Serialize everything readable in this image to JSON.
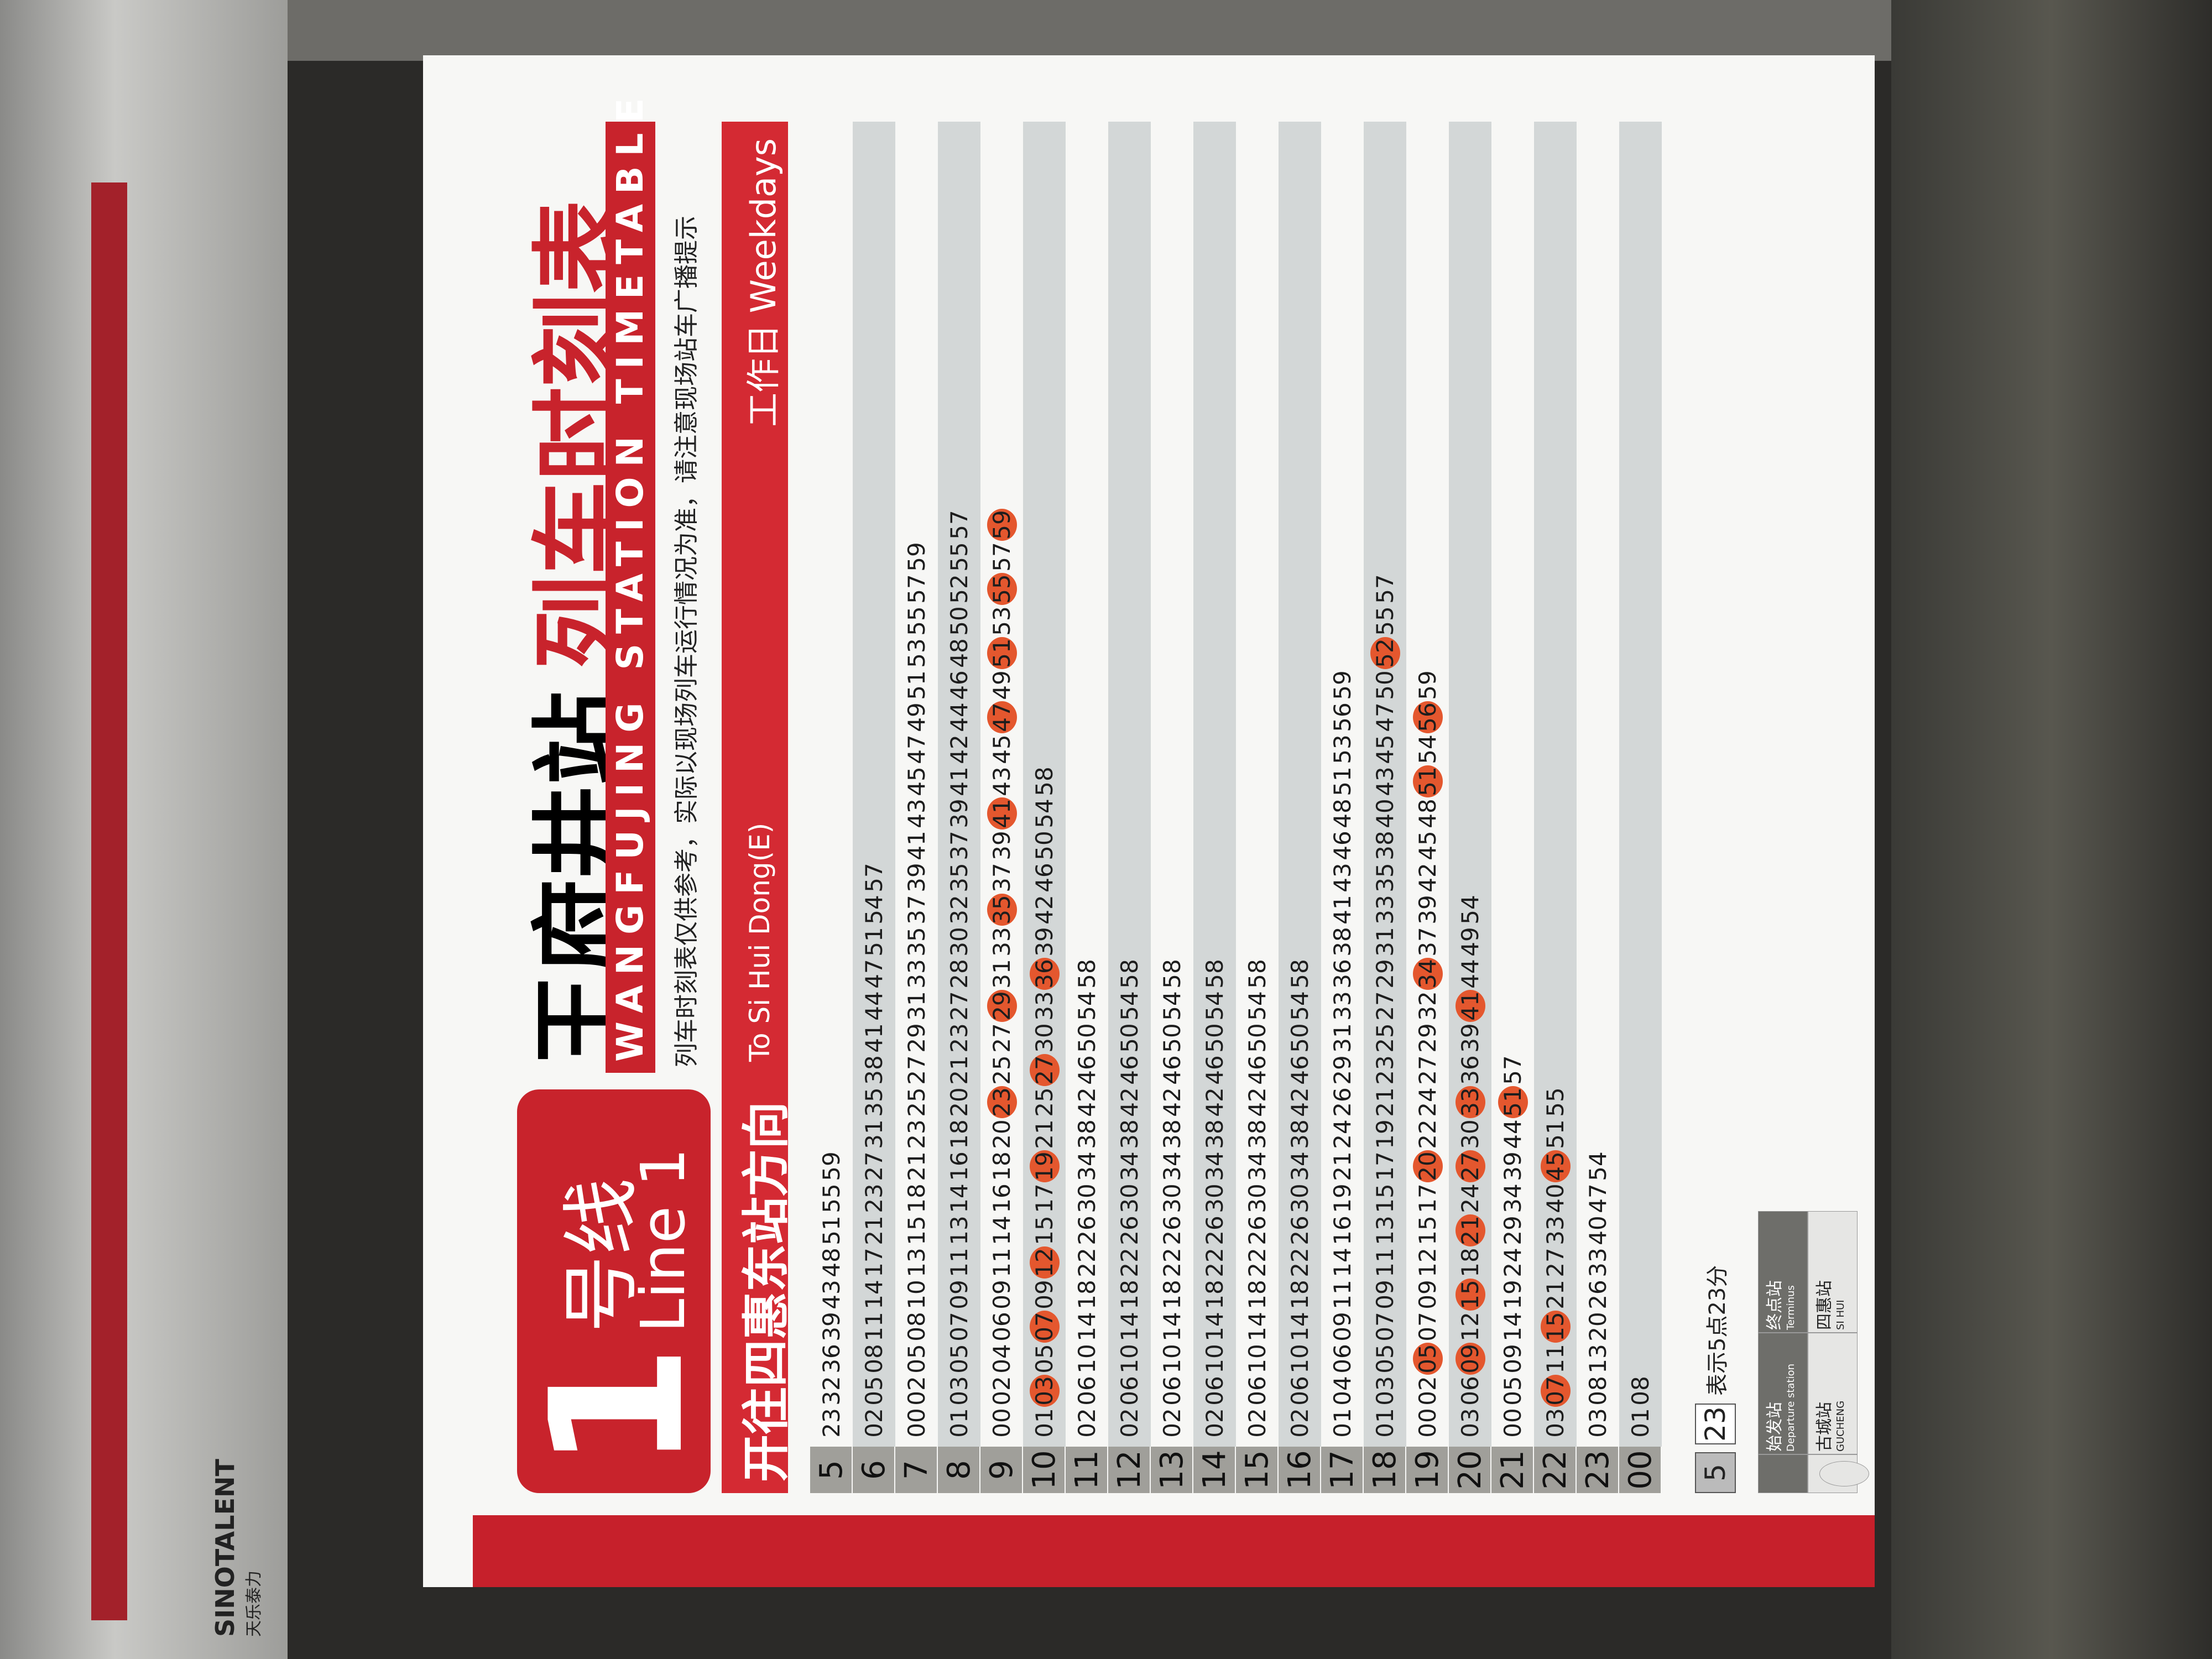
{
  "frame": {
    "brand": "SINOTALENT",
    "brand_cn": "天乐泰力"
  },
  "header": {
    "line_number": "1",
    "line_cn": "号线",
    "line_en": "Line 1",
    "station_cn": "王府井站",
    "title_cn": "列车时刻表",
    "title_en": "WANGFUJING STATION TIMETABLE",
    "notice": "列车时刻表仅供参考，实际以现场列车运行情况为准，请注意现场站车广播提示",
    "direction_cn": "开往四惠东站方向",
    "direction_en": "To Si Hui Dong(E)",
    "day_cn": "工作日",
    "day_en": "Weekdays"
  },
  "table": {
    "rows": [
      {
        "hour": "5",
        "minutes": [
          "23",
          "32",
          "36",
          "39",
          "43",
          "48",
          "51",
          "55",
          "59"
        ]
      },
      {
        "hour": "6",
        "minutes": [
          "02",
          "05",
          "08",
          "11",
          "14",
          "17",
          "21",
          "23",
          "27",
          "31",
          "35",
          "38",
          "41",
          "44",
          "47",
          "51",
          "54",
          "57"
        ]
      },
      {
        "hour": "7",
        "minutes": [
          "00",
          "02",
          "05",
          "08",
          "10",
          "13",
          "15",
          "18",
          "21",
          "23",
          "25",
          "27",
          "29",
          "31",
          "33",
          "35",
          "37",
          "39",
          "41",
          "43",
          "45",
          "47",
          "49",
          "51",
          "53",
          "55",
          "57",
          "59"
        ]
      },
      {
        "hour": "8",
        "minutes": [
          "01",
          "03",
          "05",
          "07",
          "09",
          "11",
          "13",
          "14",
          "16",
          "18",
          "20",
          "21",
          "23",
          "27",
          "28",
          "30",
          "32",
          "35",
          "37",
          "39",
          "41",
          "42",
          "44",
          "46",
          "48",
          "50",
          "52",
          "55",
          "57"
        ]
      },
      {
        "hour": "9",
        "minutes": [
          "00",
          "02",
          "04",
          "06",
          "09",
          "11",
          "14",
          "16",
          "18",
          "20",
          {
            "minute": "23",
            "marked": true
          },
          "25",
          "27",
          {
            "minute": "29",
            "marked": true
          },
          "31",
          "33",
          {
            "minute": "35",
            "marked": true
          },
          "37",
          "39",
          {
            "minute": "41",
            "marked": true
          },
          "43",
          "45",
          {
            "minute": "47",
            "marked": true
          },
          "49",
          {
            "minute": "51",
            "marked": true
          },
          "53",
          {
            "minute": "55",
            "marked": true
          },
          "57",
          {
            "minute": "59",
            "marked": true
          }
        ]
      },
      {
        "hour": "10",
        "minutes": [
          "01",
          {
            "minute": "03",
            "marked": true
          },
          "05",
          {
            "minute": "07",
            "marked": true
          },
          "09",
          {
            "minute": "12",
            "marked": true
          },
          "15",
          "17",
          {
            "minute": "19",
            "marked": true
          },
          "21",
          "25",
          {
            "minute": "27",
            "marked": true
          },
          "30",
          "33",
          {
            "minute": "36",
            "marked": true
          },
          "39",
          "42",
          "46",
          "50",
          "54",
          "58"
        ]
      },
      {
        "hour": "11",
        "minutes": [
          "02",
          "06",
          "10",
          "14",
          "18",
          "22",
          "26",
          "30",
          "34",
          "38",
          "42",
          "46",
          "50",
          "54",
          "58"
        ]
      },
      {
        "hour": "12",
        "minutes": [
          "02",
          "06",
          "10",
          "14",
          "18",
          "22",
          "26",
          "30",
          "34",
          "38",
          "42",
          "46",
          "50",
          "54",
          "58"
        ]
      },
      {
        "hour": "13",
        "minutes": [
          "02",
          "06",
          "10",
          "14",
          "18",
          "22",
          "26",
          "30",
          "34",
          "38",
          "42",
          "46",
          "50",
          "54",
          "58"
        ]
      },
      {
        "hour": "14",
        "minutes": [
          "02",
          "06",
          "10",
          "14",
          "18",
          "22",
          "26",
          "30",
          "34",
          "38",
          "42",
          "46",
          "50",
          "54",
          "58"
        ]
      },
      {
        "hour": "15",
        "minutes": [
          "02",
          "06",
          "10",
          "14",
          "18",
          "22",
          "26",
          "30",
          "34",
          "38",
          "42",
          "46",
          "50",
          "54",
          "58"
        ]
      },
      {
        "hour": "16",
        "minutes": [
          "02",
          "06",
          "10",
          "14",
          "18",
          "22",
          "26",
          "30",
          "34",
          "38",
          "42",
          "46",
          "50",
          "54",
          "58"
        ]
      },
      {
        "hour": "17",
        "minutes": [
          "01",
          "04",
          "06",
          "09",
          "11",
          "14",
          "16",
          "19",
          "21",
          "24",
          "26",
          "29",
          "31",
          "33",
          "36",
          "38",
          "41",
          "43",
          "46",
          "48",
          "51",
          "53",
          "56",
          "59"
        ]
      },
      {
        "hour": "18",
        "minutes": [
          "01",
          "03",
          "05",
          "07",
          "09",
          "11",
          "13",
          "15",
          "17",
          "19",
          "21",
          "23",
          "25",
          "27",
          "29",
          "31",
          "33",
          "35",
          "38",
          "40",
          "43",
          "45",
          "47",
          "50",
          {
            "minute": "52",
            "marked": true
          },
          "55",
          "57"
        ]
      },
      {
        "hour": "19",
        "minutes": [
          "00",
          "02",
          {
            "minute": "05",
            "marked": true
          },
          "07",
          "09",
          "12",
          "15",
          "17",
          {
            "minute": "20",
            "marked": true
          },
          "22",
          "24",
          "27",
          "29",
          "32",
          {
            "minute": "34",
            "marked": true
          },
          "37",
          "39",
          "42",
          "45",
          "48",
          {
            "minute": "51",
            "marked": true
          },
          "54",
          {
            "minute": "56",
            "marked": true
          },
          "59"
        ]
      },
      {
        "hour": "20",
        "minutes": [
          "03",
          "06",
          {
            "minute": "09",
            "marked": true
          },
          "12",
          {
            "minute": "15",
            "marked": true
          },
          "18",
          {
            "minute": "21",
            "marked": true
          },
          "24",
          {
            "minute": "27",
            "marked": true
          },
          "30",
          {
            "minute": "33",
            "marked": true
          },
          "36",
          "39",
          {
            "minute": "41",
            "marked": true
          },
          "44",
          "49",
          "54"
        ]
      },
      {
        "hour": "21",
        "minutes": [
          "00",
          "05",
          "09",
          "14",
          "19",
          "24",
          "29",
          "34",
          "39",
          "44",
          {
            "minute": "51",
            "marked": true
          },
          "57"
        ]
      },
      {
        "hour": "22",
        "minutes": [
          "03",
          {
            "minute": "07",
            "marked": true
          },
          "11",
          {
            "minute": "15",
            "marked": true
          },
          "21",
          "27",
          "33",
          "40",
          {
            "minute": "45",
            "marked": true
          },
          "51",
          "55"
        ]
      },
      {
        "hour": "23",
        "minutes": [
          "03",
          "08",
          "13",
          "20",
          "26",
          "33",
          "40",
          "47",
          "54"
        ]
      },
      {
        "hour": "00",
        "minutes": [
          "01",
          "08"
        ]
      }
    ]
  },
  "legend": {
    "example_hour": "5",
    "example_minute": "23",
    "example_text": "表示5点23分",
    "departure_cn": "始发站",
    "departure_en": "Departure station",
    "terminus_cn": "终点站",
    "terminus_en": "Terminus",
    "origin_cn": "古城站",
    "origin_en": "GUCHENG",
    "end_cn": "四惠站",
    "end_en": "SI HUI"
  }
}
